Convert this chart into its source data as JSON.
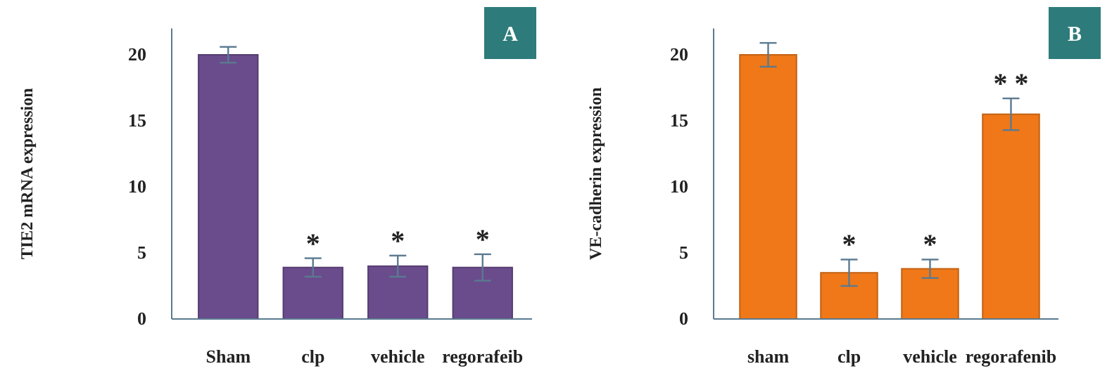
{
  "chart_data": [
    {
      "type": "bar",
      "ylabel": "TIE2 mRNA expression",
      "categories": [
        "Sham",
        "clp",
        "vehicle",
        "regorafeib"
      ],
      "values": [
        20,
        3.9,
        4.0,
        3.9
      ],
      "errors": [
        0.6,
        0.7,
        0.8,
        1.0
      ],
      "color": "#6a4c8c",
      "ylim": [
        0,
        22
      ],
      "yticks": [
        0,
        5,
        10,
        15,
        20
      ],
      "annotations": [
        "A",
        "*",
        "*",
        "*"
      ]
    },
    {
      "type": "bar",
      "ylabel": "VE-cadherin expression",
      "categories": [
        "sham",
        "clp",
        "vehicle",
        "regorafenib"
      ],
      "values": [
        20,
        3.5,
        3.8,
        15.5
      ],
      "errors": [
        0.9,
        1.0,
        0.7,
        1.2
      ],
      "color": "#f07818",
      "ylim": [
        0,
        22
      ],
      "yticks": [
        0,
        5,
        10,
        15,
        20
      ],
      "annotations": [
        "B",
        "*",
        "*",
        "* *"
      ]
    }
  ]
}
